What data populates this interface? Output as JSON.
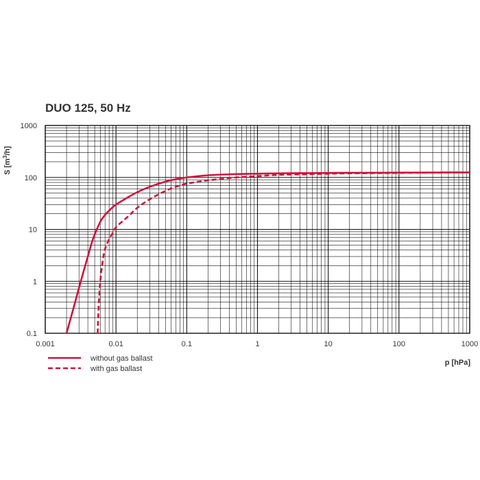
{
  "chart_data": {
    "type": "line",
    "title": "DUO 125, 50 Hz",
    "xlabel": "p [hPa]",
    "ylabel_main": "S [m",
    "ylabel_sup": "3",
    "ylabel_end": "/h]",
    "x_scale": "log",
    "y_scale": "log",
    "xlim": [
      0.001,
      1000
    ],
    "ylim": [
      0.1,
      1000
    ],
    "grid": true,
    "x_ticks": [
      "0.001",
      "0.01",
      "0.1",
      "1",
      "10",
      "100",
      "1000"
    ],
    "y_ticks": [
      "0.1",
      "1",
      "10",
      "100",
      "1000"
    ],
    "legend_position": "bottom-left",
    "series": [
      {
        "name": "without gas ballast",
        "style": "solid",
        "color": "#d0103a",
        "x": [
          0.002,
          0.0025,
          0.003,
          0.0035,
          0.004,
          0.0045,
          0.005,
          0.006,
          0.007,
          0.008,
          0.01,
          0.015,
          0.02,
          0.03,
          0.05,
          0.07,
          0.1,
          0.2,
          0.5,
          1,
          2,
          5,
          10,
          20,
          50,
          100,
          200,
          500,
          1000
        ],
        "y": [
          0.1,
          0.3,
          0.75,
          1.6,
          3.0,
          5.3,
          8.0,
          14,
          19,
          23,
          30,
          42,
          52,
          66,
          83,
          92,
          100,
          110,
          116,
          118,
          120,
          121,
          122,
          123,
          123,
          124,
          124,
          125,
          125
        ]
      },
      {
        "name": "with gas ballast",
        "style": "dashed",
        "color": "#d0103a",
        "x": [
          0.0055,
          0.0057,
          0.006,
          0.0065,
          0.007,
          0.008,
          0.009,
          0.01,
          0.015,
          0.02,
          0.03,
          0.05,
          0.07,
          0.1,
          0.2,
          0.3,
          0.5,
          1,
          2,
          5,
          10,
          20,
          50,
          100,
          200,
          500,
          1000
        ],
        "y": [
          0.1,
          0.35,
          1.0,
          2.5,
          4.2,
          6.5,
          8.5,
          11,
          18,
          26,
          38,
          55,
          66,
          76,
          88,
          93,
          100,
          106,
          112,
          115,
          118,
          120,
          121,
          122,
          123,
          124,
          125
        ]
      }
    ]
  },
  "colors": {
    "grid": "#111111",
    "curve": "#d0103a"
  }
}
